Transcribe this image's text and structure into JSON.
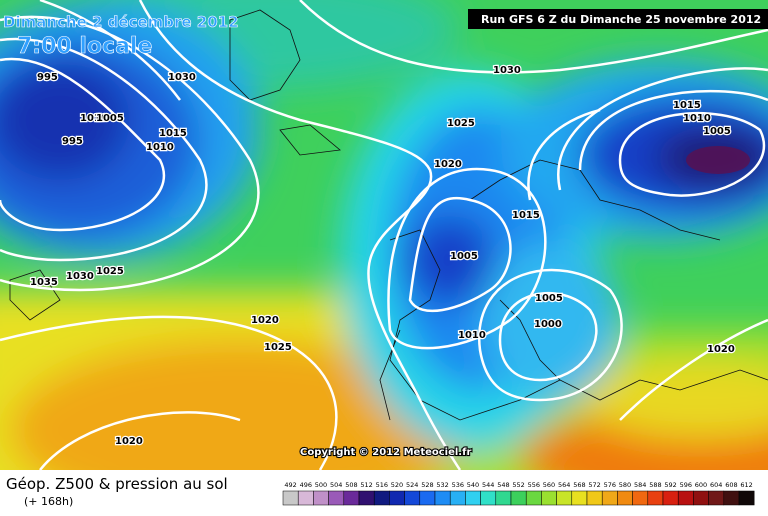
{
  "header": {
    "date": "Dimanche 2 décembre 2012",
    "time": "7:00 locale",
    "run": "Run GFS 6 Z du Dimanche 25 novembre 2012"
  },
  "map": {
    "isobar_labels": [
      "995",
      "1030",
      "1030",
      "1010",
      "1005",
      "995",
      "1015",
      "1010",
      "1025",
      "1015",
      "1010",
      "1005",
      "1020",
      "1015",
      "1005",
      "1030",
      "1025",
      "1035",
      "1005",
      "1000",
      "1020",
      "1025",
      "1010",
      "1020",
      "1020"
    ],
    "copyright": "Copyright © 2012 Meteociel.fr"
  },
  "legend": {
    "title": "Géop. Z500 & pression au sol",
    "lead": "(+ 168h)",
    "scale": [
      492,
      496,
      500,
      504,
      508,
      512,
      516,
      520,
      524,
      528,
      532,
      536,
      540,
      544,
      548,
      552,
      556,
      560,
      564,
      568,
      572,
      576,
      580,
      584,
      588,
      592,
      596,
      600,
      604,
      608,
      612
    ]
  }
}
